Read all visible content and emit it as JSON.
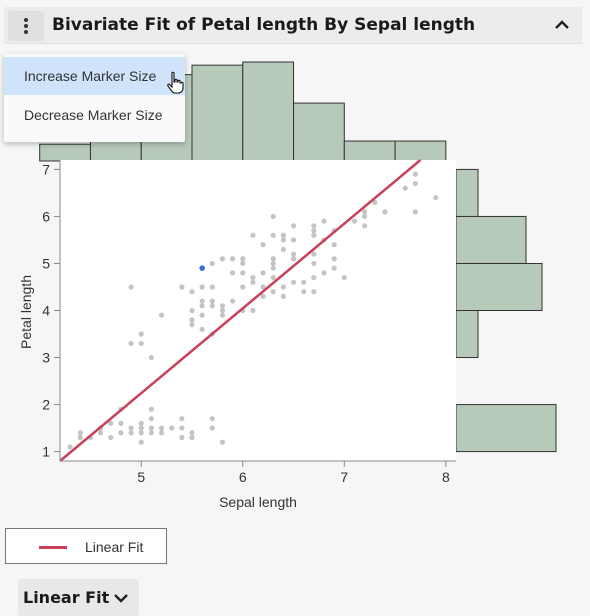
{
  "header": {
    "title": "Bivariate Fit of Petal length By Sepal length",
    "menu_icon": "more-vertical-icon",
    "collapse_icon": "chevron-up-icon"
  },
  "context_menu": {
    "items": [
      {
        "label": "Increase Marker Size",
        "highlighted": true
      },
      {
        "label": "Decrease Marker Size",
        "highlighted": false
      }
    ],
    "cursor_icon": "hand-pointer-icon"
  },
  "legend": {
    "label": "Linear Fit",
    "color": "#c8405a"
  },
  "outline": {
    "label": "Linear Fit",
    "icon": "chevron-down-icon"
  },
  "colors": {
    "points": "#c4c4c4",
    "selected_point": "#3a6fd0",
    "fit_line": "#c8405a",
    "histogram_fill": "#b7c9b9",
    "histogram_stroke": "#333333"
  },
  "chart_data": {
    "type": "scatter",
    "title": "",
    "xlabel": "Sepal length",
    "ylabel": "Petal length",
    "xlim": [
      4.2,
      8.1
    ],
    "ylim": [
      0.8,
      7.2
    ],
    "x_ticks": [
      5,
      6,
      7,
      8
    ],
    "y_ticks": [
      1,
      2,
      3,
      4,
      5,
      6,
      7
    ],
    "grid": false,
    "points": [
      [
        4.3,
        1.1
      ],
      [
        4.4,
        1.3
      ],
      [
        4.4,
        1.4
      ],
      [
        4.5,
        1.3
      ],
      [
        4.6,
        1.4
      ],
      [
        4.6,
        1.5
      ],
      [
        4.7,
        1.3
      ],
      [
        4.7,
        1.6
      ],
      [
        4.8,
        1.4
      ],
      [
        4.8,
        1.6
      ],
      [
        4.8,
        1.9
      ],
      [
        4.9,
        1.4
      ],
      [
        4.9,
        1.5
      ],
      [
        4.9,
        3.3
      ],
      [
        4.9,
        4.5
      ],
      [
        5.0,
        1.2
      ],
      [
        5.0,
        1.4
      ],
      [
        5.0,
        1.5
      ],
      [
        5.0,
        1.6
      ],
      [
        5.0,
        3.3
      ],
      [
        5.0,
        3.5
      ],
      [
        5.1,
        1.4
      ],
      [
        5.1,
        1.5
      ],
      [
        5.1,
        1.7
      ],
      [
        5.1,
        1.9
      ],
      [
        5.1,
        3.0
      ],
      [
        5.2,
        1.4
      ],
      [
        5.2,
        1.5
      ],
      [
        5.2,
        3.9
      ],
      [
        5.3,
        1.5
      ],
      [
        5.4,
        1.3
      ],
      [
        5.4,
        1.5
      ],
      [
        5.4,
        1.7
      ],
      [
        5.4,
        4.5
      ],
      [
        5.5,
        1.3
      ],
      [
        5.5,
        1.4
      ],
      [
        5.5,
        3.7
      ],
      [
        5.5,
        3.8
      ],
      [
        5.5,
        4.0
      ],
      [
        5.5,
        4.4
      ],
      [
        5.6,
        3.6
      ],
      [
        5.6,
        3.9
      ],
      [
        5.6,
        4.1
      ],
      [
        5.6,
        4.2
      ],
      [
        5.6,
        4.5
      ],
      [
        5.7,
        1.5
      ],
      [
        5.7,
        1.7
      ],
      [
        5.7,
        3.5
      ],
      [
        5.7,
        4.1
      ],
      [
        5.7,
        4.2
      ],
      [
        5.7,
        4.5
      ],
      [
        5.7,
        5.0
      ],
      [
        5.8,
        1.2
      ],
      [
        5.8,
        3.9
      ],
      [
        5.8,
        4.0
      ],
      [
        5.8,
        4.1
      ],
      [
        5.8,
        5.1
      ],
      [
        5.9,
        4.2
      ],
      [
        5.9,
        4.8
      ],
      [
        5.9,
        5.1
      ],
      [
        6.0,
        4.0
      ],
      [
        6.0,
        4.5
      ],
      [
        6.0,
        4.8
      ],
      [
        6.0,
        5.0
      ],
      [
        6.0,
        5.1
      ],
      [
        6.1,
        4.0
      ],
      [
        6.1,
        4.6
      ],
      [
        6.1,
        4.7
      ],
      [
        6.1,
        5.6
      ],
      [
        6.2,
        4.3
      ],
      [
        6.2,
        4.5
      ],
      [
        6.2,
        4.8
      ],
      [
        6.2,
        5.4
      ],
      [
        6.3,
        4.4
      ],
      [
        6.3,
        4.7
      ],
      [
        6.3,
        4.9
      ],
      [
        6.3,
        5.0
      ],
      [
        6.3,
        5.1
      ],
      [
        6.3,
        5.6
      ],
      [
        6.3,
        6.0
      ],
      [
        6.4,
        4.3
      ],
      [
        6.4,
        4.5
      ],
      [
        6.4,
        5.3
      ],
      [
        6.4,
        5.5
      ],
      [
        6.4,
        5.6
      ],
      [
        6.5,
        4.6
      ],
      [
        6.5,
        5.1
      ],
      [
        6.5,
        5.2
      ],
      [
        6.5,
        5.5
      ],
      [
        6.5,
        5.8
      ],
      [
        6.6,
        4.4
      ],
      [
        6.6,
        4.6
      ],
      [
        6.7,
        4.4
      ],
      [
        6.7,
        4.7
      ],
      [
        6.7,
        5.0
      ],
      [
        6.7,
        5.2
      ],
      [
        6.7,
        5.6
      ],
      [
        6.7,
        5.7
      ],
      [
        6.7,
        5.8
      ],
      [
        6.8,
        4.8
      ],
      [
        6.8,
        5.5
      ],
      [
        6.8,
        5.9
      ],
      [
        6.9,
        4.9
      ],
      [
        6.9,
        5.1
      ],
      [
        6.9,
        5.4
      ],
      [
        6.9,
        5.7
      ],
      [
        7.0,
        4.7
      ],
      [
        7.1,
        5.9
      ],
      [
        7.2,
        5.8
      ],
      [
        7.2,
        6.0
      ],
      [
        7.2,
        6.1
      ],
      [
        7.3,
        6.3
      ],
      [
        7.4,
        6.1
      ],
      [
        7.6,
        6.6
      ],
      [
        7.7,
        6.1
      ],
      [
        7.7,
        6.7
      ],
      [
        7.7,
        6.9
      ],
      [
        7.9,
        6.4
      ]
    ],
    "selected_point": [
      5.6,
      4.9
    ],
    "fit_line": {
      "x": [
        4.2,
        7.75
      ],
      "y": [
        0.8,
        7.2
      ]
    },
    "x_histogram": {
      "bins": [
        [
          4.0,
          4.5
        ],
        [
          4.5,
          5.0
        ],
        [
          5.0,
          5.5
        ],
        [
          5.5,
          6.0
        ],
        [
          6.0,
          6.5
        ],
        [
          6.5,
          7.0
        ],
        [
          7.0,
          7.5
        ],
        [
          7.5,
          8.0
        ]
      ],
      "counts": [
        5,
        27,
        27,
        30,
        31,
        18,
        6,
        6
      ]
    },
    "y_histogram": {
      "bins": [
        [
          1,
          2
        ],
        [
          2,
          3
        ],
        [
          3,
          4
        ],
        [
          4,
          5
        ],
        [
          5,
          6
        ],
        [
          6,
          7
        ]
      ],
      "counts": [
        50,
        0,
        11,
        43,
        35,
        11
      ]
    }
  }
}
